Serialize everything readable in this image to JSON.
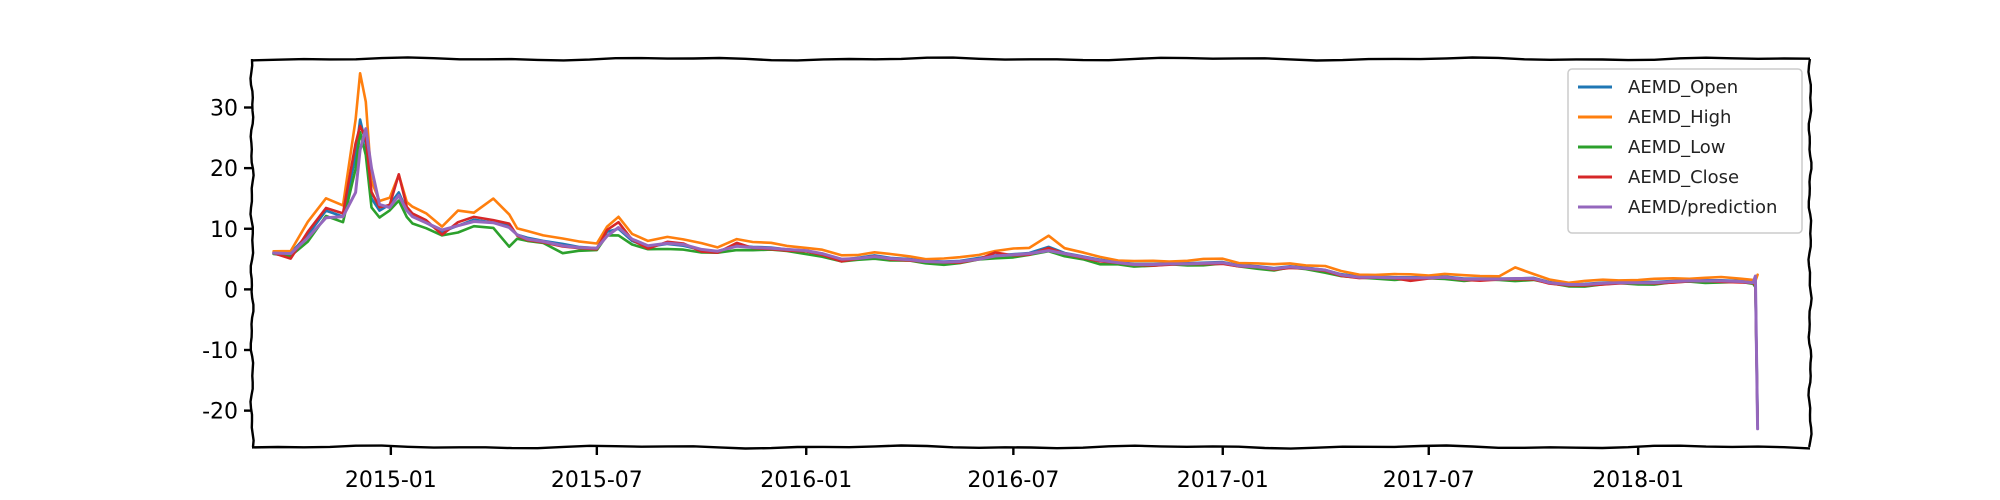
{
  "chart_data": {
    "type": "line",
    "title": "",
    "xlabel": "",
    "ylabel": "",
    "x_ticks": [
      "2015-01",
      "2015-07",
      "2016-01",
      "2016-07",
      "2017-01",
      "2017-07",
      "2018-01"
    ],
    "y_ticks": [
      30,
      20,
      10,
      0,
      -10,
      -20
    ],
    "xlim": [
      "2014-09-01",
      "2018-06-01"
    ],
    "ylim": [
      -26,
      38
    ],
    "legend_position": "top-right",
    "grid": false,
    "x": [
      "2014-09-20",
      "2014-10-05",
      "2014-10-20",
      "2014-11-05",
      "2014-11-20",
      "2014-12-01",
      "2014-12-05",
      "2014-12-10",
      "2014-12-15",
      "2014-12-22",
      "2014-12-31",
      "2015-01-08",
      "2015-01-15",
      "2015-01-20",
      "2015-02-01",
      "2015-02-15",
      "2015-03-01",
      "2015-03-15",
      "2015-04-01",
      "2015-04-15",
      "2015-04-22",
      "2015-05-01",
      "2015-05-15",
      "2015-06-01",
      "2015-06-15",
      "2015-07-01",
      "2015-07-10",
      "2015-07-20",
      "2015-08-01",
      "2015-08-15",
      "2015-09-01",
      "2015-09-15",
      "2015-10-01",
      "2015-10-15",
      "2015-11-01",
      "2015-11-15",
      "2015-12-01",
      "2015-12-15",
      "2016-01-01",
      "2016-01-15",
      "2016-02-01",
      "2016-02-15",
      "2016-03-01",
      "2016-03-15",
      "2016-04-01",
      "2016-04-15",
      "2016-05-01",
      "2016-05-15",
      "2016-06-01",
      "2016-06-15",
      "2016-07-01",
      "2016-07-15",
      "2016-08-01",
      "2016-08-15",
      "2016-09-01",
      "2016-09-15",
      "2016-10-01",
      "2016-10-15",
      "2016-11-01",
      "2016-11-15",
      "2016-12-01",
      "2016-12-15",
      "2017-01-01",
      "2017-01-15",
      "2017-02-01",
      "2017-02-15",
      "2017-03-01",
      "2017-03-15",
      "2017-04-01",
      "2017-04-15",
      "2017-05-01",
      "2017-05-15",
      "2017-06-01",
      "2017-06-15",
      "2017-07-01",
      "2017-07-15",
      "2017-08-01",
      "2017-08-15",
      "2017-09-01",
      "2017-09-15",
      "2017-10-01",
      "2017-10-15",
      "2017-11-01",
      "2017-11-15",
      "2017-12-01",
      "2017-12-15",
      "2018-01-01",
      "2018-01-15",
      "2018-02-01",
      "2018-02-15",
      "2018-03-01",
      "2018-03-15",
      "2018-04-01",
      "2018-04-12",
      "2018-04-14",
      "2018-04-16"
    ],
    "series": [
      {
        "name": "AEMD_Open",
        "color": "#1f77b4",
        "values": [
          6.0,
          6.0,
          9.0,
          13.0,
          12.0,
          22.0,
          28.0,
          24.0,
          15.0,
          13.0,
          14.0,
          16.0,
          13.0,
          12.0,
          11.0,
          9.5,
          10.5,
          11.5,
          11.0,
          10.5,
          9.0,
          8.5,
          8.0,
          7.5,
          7.0,
          6.8,
          9.5,
          10.0,
          8.0,
          7.0,
          7.5,
          7.2,
          6.5,
          6.3,
          7.2,
          7.0,
          6.9,
          6.6,
          6.3,
          5.9,
          4.9,
          5.2,
          5.6,
          5.2,
          5.0,
          4.7,
          4.6,
          4.7,
          5.2,
          5.6,
          5.8,
          6.0,
          7.0,
          6.0,
          5.4,
          4.9,
          4.5,
          4.2,
          4.2,
          4.3,
          4.3,
          4.4,
          4.5,
          4.0,
          3.8,
          3.5,
          3.8,
          3.6,
          3.2,
          2.5,
          2.1,
          2.1,
          2.0,
          2.0,
          2.0,
          2.1,
          1.8,
          1.8,
          1.8,
          1.8,
          1.9,
          1.2,
          0.8,
          0.9,
          1.1,
          1.2,
          1.2,
          1.2,
          1.4,
          1.5,
          1.5,
          1.5,
          1.4,
          1.2,
          0.8,
          -21.0
        ]
      },
      {
        "name": "AEMD_High",
        "color": "#ff7f0e",
        "values": [
          6.4,
          6.4,
          11.0,
          15.0,
          14.0,
          28.0,
          35.5,
          31.0,
          18.0,
          14.5,
          15.0,
          19.0,
          14.5,
          13.5,
          12.5,
          10.5,
          13.0,
          12.5,
          15.0,
          12.5,
          10.0,
          9.5,
          9.0,
          8.5,
          7.8,
          7.5,
          10.5,
          12.0,
          9.0,
          8.0,
          8.8,
          8.2,
          7.5,
          7.0,
          8.4,
          7.7,
          7.6,
          7.3,
          6.9,
          6.4,
          5.6,
          5.8,
          6.1,
          5.7,
          5.5,
          5.1,
          5.0,
          5.2,
          5.8,
          6.4,
          6.6,
          6.8,
          9.0,
          6.8,
          5.9,
          5.4,
          4.9,
          4.6,
          4.6,
          4.7,
          4.8,
          4.9,
          5.0,
          4.5,
          4.3,
          4.0,
          4.3,
          4.1,
          3.8,
          2.9,
          2.5,
          2.5,
          2.4,
          2.4,
          2.4,
          2.6,
          2.2,
          2.2,
          2.3,
          3.6,
          2.4,
          1.7,
          1.2,
          1.3,
          1.5,
          1.6,
          1.6,
          1.6,
          1.8,
          1.9,
          1.9,
          1.9,
          1.8,
          1.7,
          1.3,
          2.3
        ]
      },
      {
        "name": "AEMD_Low",
        "color": "#2ca02c",
        "values": [
          5.7,
          5.6,
          8.0,
          12.0,
          11.0,
          20.0,
          26.0,
          22.0,
          13.5,
          12.0,
          13.0,
          14.5,
          12.0,
          11.0,
          10.0,
          8.8,
          9.5,
          10.5,
          10.0,
          7.0,
          8.5,
          8.0,
          7.5,
          6.0,
          6.5,
          6.4,
          8.8,
          9.0,
          7.5,
          6.5,
          6.6,
          6.7,
          6.1,
          5.9,
          6.5,
          6.6,
          6.5,
          6.2,
          5.9,
          5.5,
          4.5,
          4.8,
          5.2,
          4.8,
          4.6,
          4.3,
          4.2,
          4.3,
          4.8,
          5.2,
          5.4,
          5.6,
          6.2,
          5.6,
          5.0,
          4.0,
          4.1,
          3.9,
          3.9,
          4.0,
          4.0,
          4.1,
          4.2,
          3.7,
          3.5,
          3.2,
          3.5,
          3.3,
          2.9,
          2.2,
          1.8,
          1.8,
          1.7,
          1.7,
          1.7,
          1.8,
          1.5,
          1.5,
          1.5,
          1.5,
          1.6,
          0.9,
          0.5,
          0.6,
          0.8,
          0.9,
          0.9,
          0.9,
          1.1,
          1.2,
          1.2,
          1.2,
          1.1,
          0.9,
          0.5,
          -22.5
        ]
      },
      {
        "name": "AEMD_Close",
        "color": "#d62728",
        "values": [
          6.0,
          5.0,
          9.5,
          13.5,
          12.5,
          24.0,
          27.0,
          25.0,
          16.0,
          13.5,
          14.0,
          19.0,
          13.5,
          12.5,
          11.5,
          9.0,
          11.0,
          12.0,
          11.5,
          10.8,
          8.8,
          8.2,
          7.8,
          7.0,
          6.8,
          6.7,
          9.8,
          11.0,
          8.2,
          6.8,
          7.8,
          7.5,
          6.3,
          6.1,
          7.6,
          6.8,
          6.7,
          6.4,
          6.2,
          5.7,
          4.7,
          5.0,
          5.4,
          5.0,
          4.8,
          4.5,
          4.4,
          4.5,
          5.0,
          6.0,
          5.6,
          5.8,
          6.8,
          5.8,
          5.2,
          4.7,
          4.3,
          4.0,
          4.0,
          4.1,
          4.1,
          4.2,
          4.3,
          3.8,
          3.6,
          3.3,
          3.6,
          3.4,
          3.0,
          2.3,
          1.9,
          1.9,
          1.8,
          1.5,
          1.8,
          1.9,
          1.6,
          1.5,
          1.6,
          1.6,
          1.7,
          1.0,
          0.6,
          0.6,
          0.9,
          1.0,
          1.0,
          1.0,
          1.2,
          1.3,
          1.3,
          1.3,
          1.2,
          1.0,
          0.6,
          -22.0
        ]
      },
      {
        "name": "AEMD/prediction",
        "color": "#9467bd",
        "values": [
          6.0,
          5.9,
          8.5,
          11.8,
          12.0,
          16.0,
          23.0,
          26.5,
          20.0,
          14.0,
          13.5,
          15.5,
          13.0,
          12.0,
          11.0,
          9.8,
          10.5,
          11.2,
          11.0,
          10.2,
          9.0,
          8.3,
          7.9,
          7.2,
          6.9,
          6.8,
          8.8,
          10.2,
          8.3,
          7.2,
          7.6,
          7.4,
          6.6,
          6.3,
          7.1,
          6.9,
          6.8,
          6.6,
          6.4,
          5.9,
          5.0,
          5.1,
          5.4,
          5.1,
          4.9,
          4.6,
          4.5,
          4.6,
          5.0,
          5.5,
          5.7,
          5.9,
          6.4,
          5.9,
          5.3,
          4.8,
          4.4,
          4.1,
          4.1,
          4.2,
          4.2,
          4.3,
          4.4,
          3.9,
          3.7,
          3.4,
          3.7,
          3.5,
          3.2,
          2.4,
          2.0,
          2.0,
          1.9,
          1.9,
          1.9,
          2.0,
          1.7,
          1.7,
          1.7,
          1.8,
          1.8,
          1.1,
          0.8,
          0.8,
          1.0,
          1.1,
          1.1,
          1.1,
          1.3,
          1.4,
          1.4,
          1.4,
          1.3,
          1.1,
          2.2,
          -23.0
        ]
      }
    ]
  }
}
